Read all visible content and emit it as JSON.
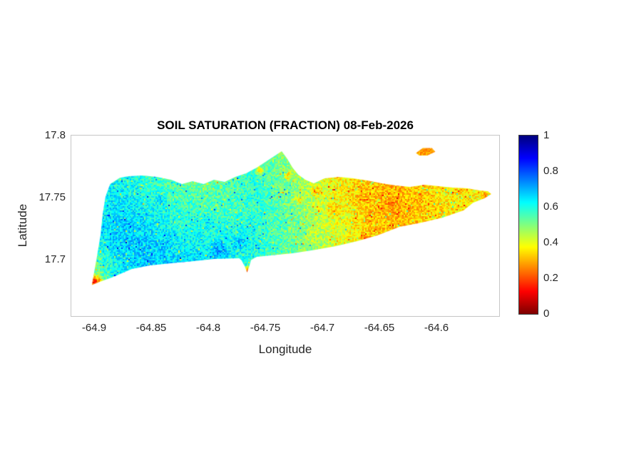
{
  "chart_data": {
    "type": "heatmap",
    "title": "SOIL SATURATION (FRACTION) 08-Feb-2026",
    "xlabel": "Longitude",
    "ylabel": "Latitude",
    "xlim": [
      -64.92,
      -64.545
    ],
    "ylim": [
      17.655,
      17.8
    ],
    "xticks": [
      -64.9,
      -64.85,
      -64.8,
      -64.75,
      -64.7,
      -64.65,
      -64.6
    ],
    "xtick_labels": [
      "-64.9",
      "-64.85",
      "-64.8",
      "-64.75",
      "-64.7",
      "-64.65",
      "-64.6"
    ],
    "yticks": [
      17.7,
      17.75,
      17.8
    ],
    "ytick_labels": [
      "17.7",
      "17.75",
      "17.8"
    ],
    "grid_on": false,
    "colorbar": {
      "position": "right",
      "min": 0,
      "max": 1,
      "ticks": [
        0,
        0.2,
        0.4,
        0.6,
        0.8,
        1
      ],
      "tick_labels": [
        "0",
        "0.2",
        "0.4",
        "0.6",
        "0.8",
        "1"
      ],
      "colormap": "jet-reversed (0=dark red, 0.2=orange, 0.4=yellow-green, 0.6=cyan, 0.8=blue, 1=dark blue)"
    },
    "value_grid": {
      "note": "approximate soil-saturation fraction field, rows north to south",
      "lon_range": [
        -64.905,
        -64.55
      ],
      "lat_range": [
        17.665,
        17.79
      ],
      "ncols": 18,
      "nrows": 6,
      "values": [
        [
          0.55,
          0.58,
          0.56,
          0.52,
          0.5,
          0.5,
          0.52,
          0.55,
          0.5,
          0.45,
          0.42,
          0.38,
          0.33,
          0.33,
          0.36,
          0.38,
          0.37,
          0.38
        ],
        [
          0.58,
          0.62,
          0.6,
          0.55,
          0.52,
          0.52,
          0.55,
          0.58,
          0.52,
          0.46,
          0.4,
          0.35,
          0.32,
          0.3,
          0.34,
          0.37,
          0.36,
          0.4
        ],
        [
          0.6,
          0.65,
          0.64,
          0.6,
          0.57,
          0.55,
          0.56,
          0.58,
          0.54,
          0.48,
          0.42,
          0.36,
          0.31,
          0.3,
          0.33,
          0.35,
          0.36,
          0.42
        ],
        [
          0.58,
          0.66,
          0.68,
          0.66,
          0.62,
          0.62,
          0.62,
          0.6,
          0.55,
          0.5,
          0.44,
          0.38,
          0.33,
          0.32,
          0.33,
          0.35,
          0.36,
          0.42
        ],
        [
          0.45,
          0.6,
          0.66,
          0.68,
          0.66,
          0.66,
          0.63,
          0.57,
          0.52,
          0.47,
          0.43,
          0.4,
          0.35,
          0.33,
          0.33,
          0.35,
          0.36,
          0.42
        ],
        [
          0.3,
          0.52,
          0.62,
          0.64,
          0.63,
          0.62,
          0.6,
          0.54,
          0.48,
          0.44,
          0.42,
          0.4,
          0.35,
          0.33,
          0.33,
          0.35,
          0.36,
          0.42
        ]
      ]
    },
    "island_outline": [
      [
        -64.902,
        17.68
      ],
      [
        -64.8975,
        17.703
      ],
      [
        -64.8944,
        17.72
      ],
      [
        -64.8925,
        17.737
      ],
      [
        -64.89,
        17.751
      ],
      [
        -64.886,
        17.761
      ],
      [
        -64.8775,
        17.766
      ],
      [
        -64.87,
        17.7673
      ],
      [
        -64.8575,
        17.7679
      ],
      [
        -64.845,
        17.7668
      ],
      [
        -64.8325,
        17.7645
      ],
      [
        -64.823,
        17.761
      ],
      [
        -64.8138,
        17.7633
      ],
      [
        -64.804,
        17.761
      ],
      [
        -64.795,
        17.7645
      ],
      [
        -64.7856,
        17.7628
      ],
      [
        -64.7763,
        17.7668
      ],
      [
        -64.7669,
        17.7696
      ],
      [
        -64.7575,
        17.7742
      ],
      [
        -64.748,
        17.78
      ],
      [
        -64.7356,
        17.7874
      ],
      [
        -64.731,
        17.7817
      ],
      [
        -64.726,
        17.774
      ],
      [
        -64.721,
        17.7685
      ],
      [
        -64.7148,
        17.7645
      ],
      [
        -64.7075,
        17.7616
      ],
      [
        -64.698,
        17.7656
      ],
      [
        -64.6856,
        17.7668
      ],
      [
        -64.673,
        17.7656
      ],
      [
        -64.6606,
        17.7639
      ],
      [
        -64.648,
        17.7616
      ],
      [
        -64.6356,
        17.7599
      ],
      [
        -64.623,
        17.7587
      ],
      [
        -64.6106,
        17.7605
      ],
      [
        -64.598,
        17.7593
      ],
      [
        -64.5856,
        17.7582
      ],
      [
        -64.573,
        17.7576
      ],
      [
        -64.562,
        17.7559
      ],
      [
        -64.555,
        17.7553
      ],
      [
        -64.5519,
        17.753
      ],
      [
        -64.558,
        17.7495
      ],
      [
        -64.568,
        17.746
      ],
      [
        -64.576,
        17.74
      ],
      [
        -64.595,
        17.734
      ],
      [
        -64.6138,
        17.73
      ],
      [
        -64.6325,
        17.7267
      ],
      [
        -64.651,
        17.72
      ],
      [
        -64.67,
        17.715
      ],
      [
        -64.689,
        17.711
      ],
      [
        -64.7075,
        17.708
      ],
      [
        -64.726,
        17.7055
      ],
      [
        -64.745,
        17.7037
      ],
      [
        -64.7575,
        17.7026
      ],
      [
        -64.7625,
        17.7
      ],
      [
        -64.764,
        17.695
      ],
      [
        -64.766,
        17.69
      ],
      [
        -64.768,
        17.695
      ],
      [
        -64.771,
        17.7
      ],
      [
        -64.773,
        17.7014
      ],
      [
        -64.795,
        17.7009
      ],
      [
        -64.814,
        17.699
      ],
      [
        -64.8325,
        17.6974
      ],
      [
        -64.851,
        17.6957
      ],
      [
        -64.8669,
        17.6928
      ],
      [
        -64.8825,
        17.6866
      ],
      [
        -64.895,
        17.6825
      ]
    ],
    "islets": [
      {
        "outline": [
          [
            -64.618,
            17.786
          ],
          [
            -64.612,
            17.79
          ],
          [
            -64.604,
            17.79
          ],
          [
            -64.601,
            17.787
          ],
          [
            -64.608,
            17.784
          ],
          [
            -64.615,
            17.784
          ]
        ],
        "value": 0.28
      }
    ],
    "patches": [
      [
        -64.899,
        17.682,
        0.008,
        0.07
      ],
      [
        -64.766,
        17.691,
        0.005,
        0.1
      ],
      [
        -64.79,
        17.708,
        0.01,
        0.76
      ],
      [
        -64.772,
        17.714,
        0.007,
        0.72
      ],
      [
        -64.875,
        17.728,
        0.007,
        0.7
      ],
      [
        -64.842,
        17.748,
        0.006,
        0.68
      ],
      [
        -64.8,
        17.73,
        0.008,
        0.66
      ],
      [
        -64.755,
        17.772,
        0.005,
        0.3
      ],
      [
        -64.73,
        17.768,
        0.005,
        0.3
      ],
      [
        -64.705,
        17.755,
        0.006,
        0.28
      ],
      [
        -64.72,
        17.748,
        0.005,
        0.3
      ],
      [
        -64.69,
        17.74,
        0.008,
        0.28
      ],
      [
        -64.662,
        17.717,
        0.005,
        0.16
      ],
      [
        -64.64,
        17.744,
        0.007,
        0.24
      ],
      [
        -64.617,
        17.748,
        0.006,
        0.26
      ],
      [
        -64.6,
        17.742,
        0.006,
        0.3
      ],
      [
        -64.665,
        17.75,
        0.006,
        0.27
      ],
      [
        -64.557,
        17.752,
        0.005,
        0.25
      ],
      [
        -64.74,
        17.703,
        0.006,
        0.55
      ],
      [
        -64.71,
        17.72,
        0.008,
        0.42
      ]
    ],
    "noise_amplitude": 0.16,
    "outlier_fraction": 0.07,
    "outlier_amplitude": 0.45
  }
}
